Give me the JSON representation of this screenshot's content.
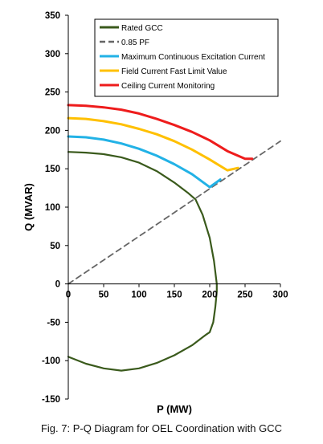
{
  "caption": "Fig. 7:  P-Q Diagram for OEL Coordination with GCC",
  "chart_data": {
    "type": "line",
    "xlabel": "P (MW)",
    "ylabel": "Q (MVAR)",
    "xlim": [
      0,
      300
    ],
    "ylim": [
      -150,
      350
    ],
    "xticks": [
      0,
      50,
      100,
      150,
      200,
      250,
      300
    ],
    "yticks": [
      -150,
      -100,
      -50,
      0,
      50,
      100,
      150,
      200,
      250,
      300,
      350
    ],
    "grid": false,
    "legend_position": "top-right",
    "series": [
      {
        "name": "Rated GCC",
        "color": "#3a5a1c",
        "dash": "solid",
        "x": [
          0,
          25,
          50,
          75,
          100,
          125,
          150,
          170,
          180,
          190,
          200,
          206,
          210,
          210,
          208,
          205,
          200,
          195,
          175,
          150,
          125,
          100,
          75,
          50,
          25,
          0
        ],
        "y": [
          172,
          171,
          169,
          165,
          158,
          147,
          132,
          118,
          110,
          90,
          60,
          30,
          0,
          -10,
          -30,
          -50,
          -63,
          -66,
          -80,
          -93,
          -103,
          -110,
          -113,
          -110,
          -104,
          -95
        ]
      },
      {
        "name": "0.85 PF",
        "color": "#666666",
        "dash": "dashed",
        "x": [
          0,
          300
        ],
        "y": [
          0,
          186
        ]
      },
      {
        "name": "Maximum Continuous Excitation Current",
        "color": "#22b2e6",
        "dash": "solid",
        "x": [
          0,
          25,
          50,
          75,
          100,
          125,
          150,
          175,
          200,
          215
        ],
        "y": [
          192,
          191,
          188,
          183,
          176,
          167,
          156,
          143,
          126,
          136
        ]
      },
      {
        "name": "Field Current Fast Limit Value",
        "color": "#ffc000",
        "dash": "solid",
        "x": [
          0,
          25,
          50,
          75,
          100,
          125,
          150,
          175,
          200,
          225,
          240
        ],
        "y": [
          216,
          215,
          212,
          208,
          202,
          195,
          186,
          175,
          162,
          148,
          151
        ]
      },
      {
        "name": "Ceiling Current Monitoring",
        "color": "#ee1c1c",
        "dash": "solid",
        "x": [
          0,
          25,
          50,
          75,
          100,
          125,
          150,
          175,
          200,
          225,
          250,
          260
        ],
        "y": [
          233,
          232,
          230,
          227,
          222,
          215,
          207,
          198,
          187,
          173,
          163,
          163
        ]
      }
    ]
  }
}
